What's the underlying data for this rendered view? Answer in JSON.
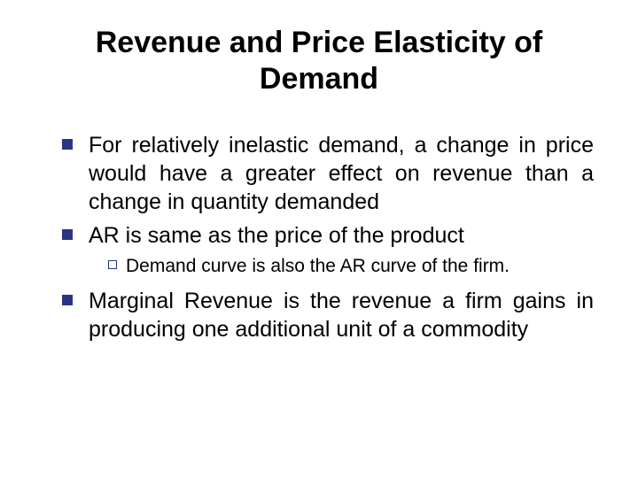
{
  "title": "Revenue and Price Elasticity of Demand",
  "bullets": {
    "b1": "For relatively inelastic demand, a change in price would have a greater effect on revenue than a change in quantity demanded",
    "b2": "AR is same as the price of the product",
    "b2_sub": "Demand curve is also the AR curve of the firm.",
    "b3": "Marginal Revenue is the revenue a firm gains in producing one additional unit of a commodity"
  },
  "colors": {
    "bullet_marker": "#293486",
    "text": "#000000",
    "background": "#ffffff"
  },
  "typography": {
    "title_fontsize": 34,
    "body_fontsize": 25,
    "sub_fontsize": 21,
    "font_family": "Arial"
  }
}
